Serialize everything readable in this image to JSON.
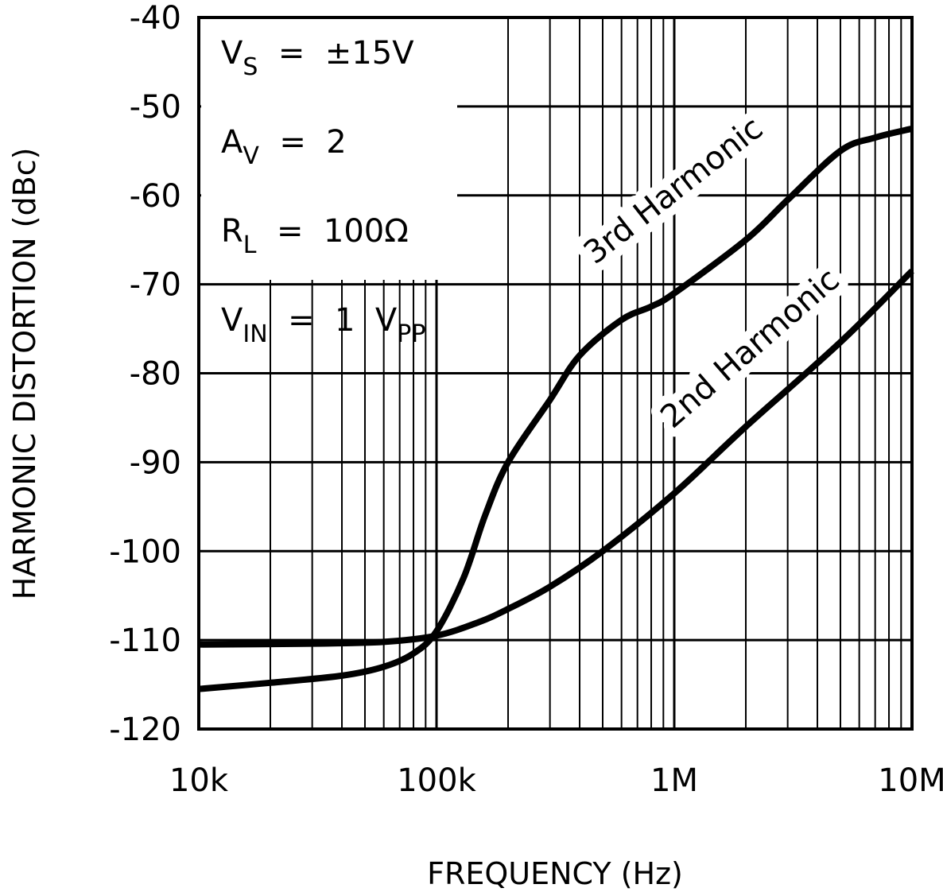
{
  "chart_data": {
    "type": "line",
    "xlabel": "FREQUENCY (Hz)",
    "ylabel": "HARMONIC DISTORTION (dBc)",
    "xscale": "log",
    "xlim": [
      10000,
      10000000
    ],
    "ylim": [
      -120,
      -40
    ],
    "grid": true,
    "x_tick_values": [
      10000,
      100000,
      1000000,
      10000000
    ],
    "x_tick_labels": [
      "10k",
      "100k",
      "1M",
      "10M"
    ],
    "y_ticks": [
      -40,
      -50,
      -60,
      -70,
      -80,
      -90,
      -100,
      -110,
      -120
    ],
    "y_tick_labels": [
      "-40",
      "-50",
      "-60",
      "-70",
      "-80",
      "-90",
      "-100",
      "-110",
      "-120"
    ],
    "conditions": [
      {
        "main": "V",
        "sub": "S",
        "rest": " = ±15V",
        "sub2": ""
      },
      {
        "main": "A",
        "sub": "V",
        "rest": " = 2",
        "sub2": ""
      },
      {
        "main": "R",
        "sub": "L",
        "rest": " = 100Ω",
        "sub2": ""
      },
      {
        "main": "V",
        "sub": "IN",
        "rest": " = 1 V",
        "sub2": "PP"
      }
    ],
    "series": [
      {
        "name": "3rd Harmonic",
        "x": [
          10000,
          20000,
          40000,
          60000,
          80000,
          100000,
          130000,
          160000,
          200000,
          300000,
          400000,
          600000,
          800000,
          1000000,
          2000000,
          3000000,
          5000000,
          7000000,
          10000000
        ],
        "y": [
          -115.5,
          -114.8,
          -114,
          -113,
          -111.5,
          -109,
          -103,
          -96,
          -90,
          -83,
          -78,
          -74,
          -72.5,
          -71,
          -65,
          -60.5,
          -55,
          -53.5,
          -52.5
        ]
      },
      {
        "name": "2nd Harmonic",
        "x": [
          10000,
          30000,
          60000,
          100000,
          150000,
          200000,
          300000,
          500000,
          1000000,
          2000000,
          5000000,
          10000000
        ],
        "y": [
          -110.5,
          -110.4,
          -110.2,
          -109.5,
          -108,
          -106.5,
          -104,
          -100,
          -93.5,
          -86,
          -76.5,
          -68.5
        ]
      }
    ]
  }
}
